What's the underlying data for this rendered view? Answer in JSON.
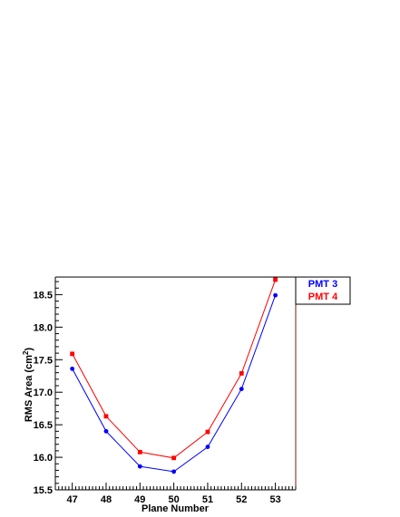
{
  "chart_data": {
    "type": "line",
    "title": "",
    "xlabel": "Plane Number",
    "ylabel": "RMS Area (cm",
    "ylabel_sup": "2",
    "ylabel_close": ")",
    "x": [
      47,
      48,
      49,
      50,
      51,
      52,
      53
    ],
    "x_tick_labels": [
      "47",
      "48",
      "49",
      "50",
      "51",
      "52",
      "53"
    ],
    "xlim": [
      46.5,
      53.6
    ],
    "ylim": [
      15.5,
      18.77
    ],
    "y_ticks": [
      15.5,
      16.0,
      16.5,
      17.0,
      17.5,
      18.0,
      18.5
    ],
    "y_tick_labels": [
      "15.5",
      "16.0",
      "16.5",
      "17.0",
      "17.5",
      "18.0",
      "18.5"
    ],
    "grid": false,
    "legend_position": "top-right-outside",
    "series": [
      {
        "name": "PMT 3",
        "color": "#0000ff",
        "marker": "circle",
        "values": [
          17.36,
          16.4,
          15.86,
          15.78,
          16.16,
          17.05,
          18.49
        ]
      },
      {
        "name": "PMT 4",
        "color": "#ff0000",
        "marker": "square",
        "values": [
          17.59,
          16.63,
          16.08,
          15.99,
          16.39,
          17.29,
          18.73
        ]
      }
    ]
  },
  "colors": {
    "frame": "#000000",
    "right_border": "#7a1a1a"
  }
}
